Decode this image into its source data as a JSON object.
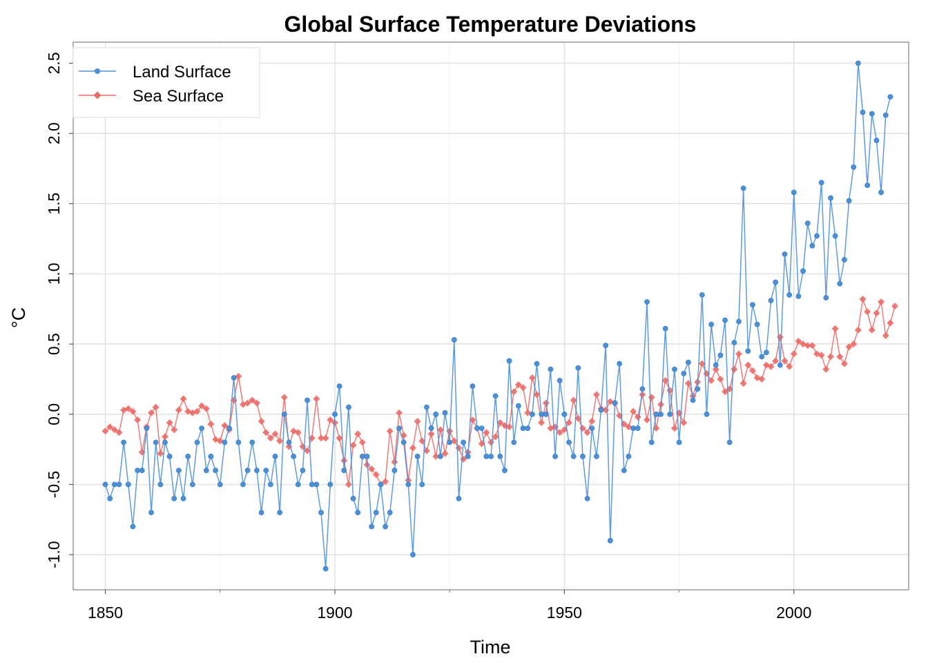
{
  "chart_data": {
    "type": "line",
    "title": "Global Surface Temperature Deviations",
    "xlabel": "Time",
    "ylabel": "°C",
    "xlim": [
      1843,
      2025
    ],
    "ylim": [
      -1.25,
      2.65
    ],
    "x_ticks": [
      "1850",
      "1900",
      "1950",
      "2000"
    ],
    "y_ticks": [
      "-1.0",
      "-0.5",
      "0.0",
      "0.5",
      "1.0",
      "1.5",
      "2.0",
      "2.5"
    ],
    "grid": true,
    "legend_position": "top-left",
    "x_start": 1850,
    "series": [
      {
        "name": "Land Surface",
        "color": "#4A90D9",
        "marker": "circle",
        "values": [
          -0.5,
          -0.6,
          -0.5,
          -0.5,
          -0.2,
          -0.5,
          -0.8,
          -0.4,
          -0.4,
          -0.1,
          -0.7,
          -0.2,
          -0.5,
          -0.2,
          -0.3,
          -0.6,
          -0.4,
          -0.6,
          -0.3,
          -0.5,
          -0.2,
          -0.1,
          -0.4,
          -0.3,
          -0.4,
          -0.5,
          -0.2,
          -0.1,
          0.26,
          -0.2,
          -0.5,
          -0.4,
          -0.2,
          -0.4,
          -0.7,
          -0.4,
          -0.5,
          -0.3,
          -0.7,
          0.0,
          -0.2,
          -0.3,
          -0.5,
          -0.4,
          0.1,
          -0.5,
          -0.5,
          -0.7,
          -1.1,
          -0.5,
          0.0,
          0.2,
          -0.4,
          0.05,
          -0.6,
          -0.7,
          -0.3,
          -0.3,
          -0.8,
          -0.7,
          -0.5,
          -0.8,
          -0.7,
          -0.4,
          -0.1,
          -0.2,
          -0.5,
          -1.0,
          -0.3,
          -0.5,
          0.05,
          -0.1,
          0.0,
          -0.3,
          0.01,
          -0.2,
          0.53,
          -0.6,
          -0.2,
          -0.3,
          0.2,
          -0.1,
          -0.1,
          -0.3,
          -0.3,
          0.13,
          -0.3,
          -0.4,
          0.38,
          -0.2,
          0.06,
          -0.1,
          -0.1,
          0.0,
          0.36,
          0.0,
          0.0,
          0.32,
          -0.3,
          0.24,
          0.0,
          -0.2,
          -0.3,
          0.33,
          -0.3,
          -0.6,
          -0.1,
          -0.3,
          0.03,
          0.49,
          -0.9,
          0.08,
          0.36,
          -0.4,
          -0.3,
          -0.1,
          -0.1,
          0.18,
          0.8,
          -0.2,
          0.0,
          0.0,
          0.61,
          0.0,
          0.32,
          -0.2,
          0.29,
          0.37,
          0.1,
          0.18,
          0.85,
          0.0,
          0.64,
          0.35,
          0.42,
          0.67,
          -0.2,
          0.51,
          0.66,
          1.61,
          0.45,
          0.78,
          0.64,
          0.41,
          0.44,
          0.81,
          0.94,
          0.35,
          1.14,
          0.85,
          1.58,
          0.84,
          1.02,
          1.36,
          1.2,
          1.27,
          1.65,
          0.83,
          1.54,
          1.27,
          0.93,
          1.1,
          1.52,
          1.76,
          2.5,
          2.15,
          1.63,
          2.14,
          1.95,
          1.58,
          2.13,
          2.26
        ]
      },
      {
        "name": "Sea Surface",
        "color": "#EE6A67",
        "marker": "diamond",
        "values": [
          -0.12,
          -0.09,
          -0.11,
          -0.13,
          0.03,
          0.04,
          0.02,
          -0.04,
          -0.27,
          -0.09,
          0.01,
          0.05,
          -0.28,
          -0.16,
          -0.06,
          -0.11,
          0.03,
          0.11,
          0.02,
          0.01,
          0.02,
          0.06,
          0.04,
          -0.07,
          -0.18,
          -0.19,
          -0.08,
          -0.11,
          0.1,
          0.27,
          0.07,
          0.08,
          0.1,
          0.08,
          -0.05,
          -0.13,
          -0.17,
          -0.14,
          -0.19,
          0.12,
          -0.23,
          -0.12,
          -0.13,
          -0.23,
          -0.26,
          -0.17,
          0.11,
          -0.17,
          -0.17,
          -0.04,
          -0.06,
          -0.17,
          -0.33,
          -0.5,
          -0.22,
          -0.14,
          -0.2,
          -0.36,
          -0.39,
          -0.43,
          -0.5,
          -0.48,
          -0.12,
          -0.34,
          0.01,
          -0.15,
          -0.47,
          -0.24,
          -0.05,
          -0.19,
          -0.26,
          -0.14,
          -0.3,
          -0.11,
          -0.28,
          -0.12,
          -0.19,
          -0.24,
          -0.32,
          -0.27,
          -0.04,
          -0.1,
          -0.21,
          -0.13,
          -0.2,
          -0.16,
          -0.06,
          -0.08,
          -0.09,
          0.16,
          0.21,
          0.19,
          0.01,
          0.26,
          0.14,
          -0.06,
          0.08,
          -0.1,
          -0.09,
          -0.13,
          -0.11,
          -0.06,
          0.1,
          -0.03,
          -0.1,
          -0.13,
          -0.05,
          0.14,
          0.04,
          0.03,
          0.09,
          0.08,
          -0.01,
          -0.07,
          -0.09,
          0.02,
          -0.02,
          0.14,
          -0.04,
          0.12,
          -0.1,
          0.07,
          0.24,
          0.17,
          -0.1,
          0.01,
          -0.06,
          0.22,
          0.13,
          0.23,
          0.36,
          0.29,
          0.24,
          0.32,
          0.25,
          0.16,
          0.18,
          0.32,
          0.43,
          0.22,
          0.35,
          0.31,
          0.26,
          0.25,
          0.35,
          0.34,
          0.38,
          0.55,
          0.38,
          0.34,
          0.43,
          0.52,
          0.5,
          0.49,
          0.49,
          0.43,
          0.42,
          0.32,
          0.41,
          0.61,
          0.41,
          0.36,
          0.48,
          0.5,
          0.6,
          0.82,
          0.73,
          0.6,
          0.72,
          0.8,
          0.56,
          0.65,
          0.77
        ]
      }
    ]
  }
}
